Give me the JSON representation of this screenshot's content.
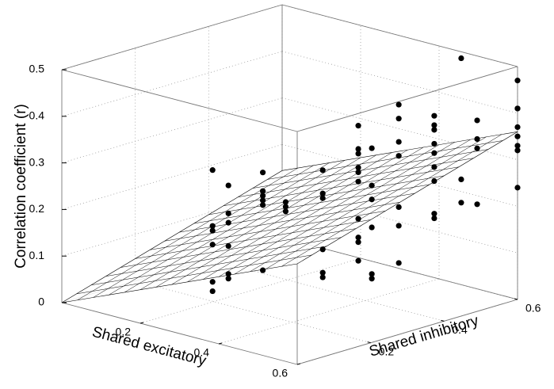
{
  "chart_data": {
    "type": "scatter3d",
    "xlabel": "Shared excitatory",
    "ylabel": "Shared inhibitory",
    "zlabel": "Correlation coefficient (r)",
    "xlim": [
      0,
      0.6
    ],
    "ylim": [
      0,
      0.6
    ],
    "zlim": [
      0,
      0.5
    ],
    "xticks": [
      0.2,
      0.4,
      0.6
    ],
    "yticks": [
      0.2,
      0.4,
      0.6
    ],
    "zticks": [
      0,
      0.1,
      0.2,
      0.3,
      0.4,
      0.5
    ],
    "grid": true,
    "color": "#000000",
    "surface": {
      "type": "plane",
      "slope_x": 0.36,
      "slope_y": 0.24,
      "intercept": 0
    },
    "x": [
      0.3,
      0.3,
      0.3,
      0.3,
      0.3,
      0.3,
      0.2,
      0.2,
      0.2,
      0.2,
      0.2,
      0.2,
      0.4,
      0.4,
      0.4,
      0.4,
      0.4,
      0.4,
      0.14,
      0.14,
      0.14,
      0.3,
      0.3,
      0.3,
      0.3,
      0.3,
      0.3,
      0.4,
      0.4,
      0.4,
      0.4,
      0.4,
      0.4,
      0.4,
      0.4,
      0.4,
      0.4,
      0.5,
      0.5,
      0.5,
      0.5,
      0.5,
      0.5,
      0.55,
      0.55,
      0.55,
      0.55,
      0.55,
      0.55,
      0.55,
      0.5,
      0.5,
      0.5,
      0.5,
      0.5,
      0.5,
      0.5,
      0.5,
      0.5,
      0.55,
      0.55,
      0.55,
      0.6,
      0.6,
      0.6,
      0.6,
      0.6,
      0.6,
      0.6,
      0.6,
      0.6,
      0.6,
      0.6,
      0.6
    ],
    "y": [
      0.09,
      0.09,
      0.09,
      0.09,
      0.09,
      0.09,
      0.24,
      0.24,
      0.24,
      0.24,
      0.24,
      0.24,
      0.12,
      0.12,
      0.12,
      0.12,
      0.12,
      0.12,
      0.46,
      0.46,
      0.46,
      0.39,
      0.39,
      0.39,
      0.39,
      0.39,
      0.39,
      0.38,
      0.38,
      0.38,
      0.38,
      0.38,
      0.38,
      0.38,
      0.38,
      0.38,
      0.38,
      0.31,
      0.31,
      0.31,
      0.31,
      0.31,
      0.31,
      0.33,
      0.33,
      0.33,
      0.33,
      0.33,
      0.33,
      0.33,
      0.48,
      0.48,
      0.48,
      0.48,
      0.48,
      0.48,
      0.48,
      0.48,
      0.48,
      0.5,
      0.5,
      0.5,
      0.49,
      0.49,
      0.49,
      0.49,
      0.6,
      0.6,
      0.6,
      0.6,
      0.6,
      0.6,
      0.6,
      0.6
    ],
    "z": [
      0.33,
      0.21,
      0.2,
      0.17,
      0.09,
      0.07,
      0.24,
      0.18,
      0.16,
      0.11,
      0.05,
      0.04,
      0.34,
      0.3,
      0.29,
      0.28,
      0.27,
      0.13,
      0.14,
      0.13,
      0.12,
      0.26,
      0.21,
      0.2,
      0.09,
      0.04,
      0.03,
      0.38,
      0.33,
      0.32,
      0.29,
      0.28,
      0.26,
      0.18,
      0.14,
      0.13,
      0.09,
      0.37,
      0.29,
      0.26,
      0.2,
      0.1,
      0.09,
      0.47,
      0.44,
      0.39,
      0.36,
      0.25,
      0.21,
      0.13,
      0.4,
      0.38,
      0.37,
      0.34,
      0.32,
      0.29,
      0.26,
      0.19,
      0.18,
      0.53,
      0.27,
      0.22,
      0.41,
      0.37,
      0.35,
      0.23,
      0.47,
      0.41,
      0.41,
      0.37,
      0.35,
      0.33,
      0.32,
      0.24
    ]
  }
}
